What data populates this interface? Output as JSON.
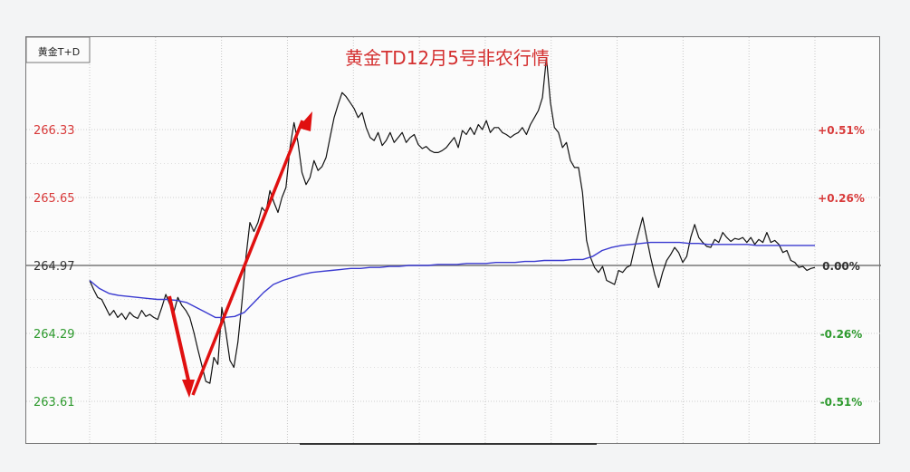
{
  "chart_data": {
    "type": "line",
    "instrument_label": "黄金T+D",
    "title": "黄金TD12月5号非农行情",
    "y_left_ticks": [
      "266.33",
      "265.65",
      "264.97",
      "264.29",
      "263.61"
    ],
    "y_right_ticks": [
      "+0.51%",
      "+0.26%",
      "0.00%",
      "-0.26%",
      "-0.51%"
    ],
    "ylim": [
      263.61,
      266.33
    ],
    "baseline": 264.97,
    "grid": true,
    "colors": {
      "up": "#d83a3a",
      "down": "#2e9a2e",
      "neutral": "#333333",
      "price": "#111111",
      "average": "#3a3ad0",
      "arrow": "#e01010",
      "title": "#d43030"
    },
    "series": [
      {
        "values": [
          264.82,
          264.73,
          264.65,
          264.63,
          264.55,
          264.47,
          264.52,
          264.45,
          264.49,
          264.43,
          264.5,
          264.46,
          264.44,
          264.52,
          264.46,
          264.48,
          264.45,
          264.43,
          264.55,
          264.68,
          264.58,
          264.5,
          264.65,
          264.57,
          264.52,
          264.45,
          264.3,
          264.13,
          263.97,
          263.81,
          263.79,
          264.05,
          263.98,
          264.55,
          264.3,
          264.02,
          263.95,
          264.2,
          264.6,
          265.05,
          265.4,
          265.31,
          265.4,
          265.55,
          265.5,
          265.72,
          265.6,
          265.5,
          265.65,
          265.75,
          266.15,
          266.4,
          266.2,
          265.9,
          265.78,
          265.85,
          266.02,
          265.92,
          265.96,
          266.05,
          266.25,
          266.45,
          266.58,
          266.7,
          266.66,
          266.6,
          266.54,
          266.45,
          266.5,
          266.35,
          266.25,
          266.22,
          266.3,
          266.17,
          266.22,
          266.3,
          266.2,
          266.25,
          266.3,
          266.2,
          266.25,
          266.28,
          266.18,
          266.14,
          266.16,
          266.12,
          266.1,
          266.1,
          266.12,
          266.15,
          266.2,
          266.25,
          266.15,
          266.32,
          266.28,
          266.35,
          266.28,
          266.38,
          266.33,
          266.42,
          266.3,
          266.35,
          266.35,
          266.3,
          266.28,
          266.25,
          266.28,
          266.3,
          266.35,
          266.28,
          266.38,
          266.45,
          266.52,
          266.65,
          267.05,
          266.6,
          266.35,
          266.3,
          266.15,
          266.2,
          266.02,
          265.95,
          265.95,
          265.7,
          265.22,
          265.05,
          264.95,
          264.9,
          264.96,
          264.82,
          264.8,
          264.78,
          264.92,
          264.9,
          264.95,
          264.97,
          265.15,
          265.3,
          265.45,
          265.25,
          265.05,
          264.88,
          264.75,
          264.9,
          265.02,
          265.08,
          265.15,
          265.1,
          265.0,
          265.06,
          265.25,
          265.38,
          265.25,
          265.2,
          265.16,
          265.15,
          265.23,
          265.2,
          265.3,
          265.25,
          265.21,
          265.24,
          265.23,
          265.25,
          265.2,
          265.25,
          265.18,
          265.23,
          265.2,
          265.3,
          265.2,
          265.22,
          265.18,
          265.1,
          265.12,
          265.02,
          265.0,
          264.95,
          264.96,
          264.92,
          264.94,
          264.95
        ],
        "x_start": 0,
        "x_end": 1
      },
      {
        "values": [
          264.82,
          264.74,
          264.69,
          264.67,
          264.66,
          264.65,
          264.64,
          264.63,
          264.63,
          264.62,
          264.6,
          264.55,
          264.5,
          264.45,
          264.45,
          264.46,
          264.5,
          264.6,
          264.7,
          264.78,
          264.82,
          264.85,
          264.88,
          264.9,
          264.91,
          264.92,
          264.93,
          264.94,
          264.94,
          264.95,
          264.95,
          264.96,
          264.96,
          264.97,
          264.97,
          264.97,
          264.98,
          264.98,
          264.98,
          264.99,
          264.99,
          264.99,
          265.0,
          265.0,
          265.0,
          265.01,
          265.01,
          265.02,
          265.02,
          265.02,
          265.03,
          265.03,
          265.06,
          265.12,
          265.15,
          265.17,
          265.18,
          265.19,
          265.2,
          265.2,
          265.2,
          265.2,
          265.19,
          265.19,
          265.18,
          265.18,
          265.18,
          265.18,
          265.18,
          265.17,
          265.17,
          265.17,
          265.17,
          265.17,
          265.17,
          265.17
        ],
        "x_start": 0,
        "x_end": 1
      }
    ]
  }
}
